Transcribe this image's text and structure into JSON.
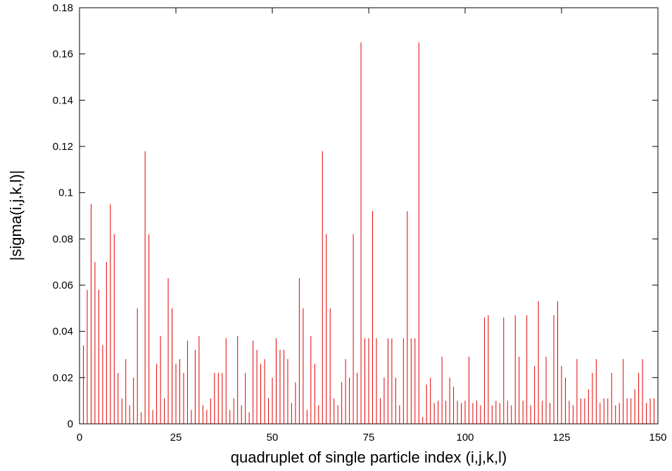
{
  "chart_data": {
    "type": "impulse",
    "xlabel": "quadruplet of single particle index (i,j,k,l)",
    "ylabel": "|sigma(i,j,k,l)|",
    "color": "#e00000",
    "xlim": [
      0,
      150
    ],
    "xticks": [
      0,
      25,
      50,
      75,
      100,
      125,
      150
    ],
    "ylim": [
      0,
      0.18
    ],
    "yticks": [
      0,
      0.02,
      0.04,
      0.06,
      0.08,
      0.1,
      0.12,
      0.14,
      0.16,
      0.18
    ],
    "x": [
      1,
      2,
      3,
      4,
      5,
      6,
      7,
      8,
      9,
      10,
      11,
      12,
      13,
      14,
      15,
      16,
      17,
      18,
      19,
      20,
      21,
      22,
      23,
      24,
      25,
      26,
      27,
      28,
      29,
      30,
      31,
      32,
      33,
      34,
      35,
      36,
      37,
      38,
      39,
      40,
      41,
      42,
      43,
      44,
      45,
      46,
      47,
      48,
      49,
      50,
      51,
      52,
      53,
      54,
      55,
      56,
      57,
      58,
      59,
      60,
      61,
      62,
      63,
      64,
      65,
      66,
      67,
      68,
      69,
      70,
      71,
      72,
      73,
      74,
      75,
      76,
      77,
      78,
      79,
      80,
      81,
      82,
      83,
      84,
      85,
      86,
      87,
      88,
      89,
      90,
      91,
      92,
      93,
      94,
      95,
      96,
      97,
      98,
      99,
      100,
      101,
      102,
      103,
      104,
      105,
      106,
      107,
      108,
      109,
      110,
      111,
      112,
      113,
      114,
      115,
      116,
      117,
      118,
      119,
      120,
      121,
      122,
      123,
      124,
      125,
      126,
      127,
      128,
      129,
      130,
      131,
      132,
      133,
      134,
      135,
      136,
      137,
      138,
      139,
      140,
      141,
      142,
      143,
      144,
      145,
      146,
      147,
      148,
      149
    ],
    "values": [
      0.034,
      0.058,
      0.095,
      0.07,
      0.058,
      0.034,
      0.07,
      0.095,
      0.082,
      0.022,
      0.011,
      0.028,
      0.008,
      0.02,
      0.05,
      0.005,
      0.118,
      0.082,
      0.006,
      0.026,
      0.038,
      0.011,
      0.063,
      0.05,
      0.026,
      0.028,
      0.022,
      0.036,
      0.006,
      0.032,
      0.038,
      0.008,
      0.006,
      0.011,
      0.022,
      0.022,
      0.022,
      0.037,
      0.006,
      0.011,
      0.038,
      0.008,
      0.022,
      0.005,
      0.036,
      0.032,
      0.026,
      0.028,
      0.011,
      0.02,
      0.037,
      0.032,
      0.032,
      0.028,
      0.009,
      0.018,
      0.063,
      0.05,
      0.006,
      0.038,
      0.026,
      0.008,
      0.118,
      0.082,
      0.05,
      0.011,
      0.008,
      0.018,
      0.028,
      0.02,
      0.082,
      0.022,
      0.165,
      0.037,
      0.037,
      0.092,
      0.037,
      0.011,
      0.02,
      0.037,
      0.037,
      0.02,
      0.008,
      0.037,
      0.092,
      0.037,
      0.037,
      0.165,
      0.003,
      0.017,
      0.02,
      0.009,
      0.01,
      0.029,
      0.01,
      0.02,
      0.016,
      0.01,
      0.009,
      0.01,
      0.029,
      0.009,
      0.01,
      0.008,
      0.046,
      0.047,
      0.008,
      0.01,
      0.009,
      0.046,
      0.01,
      0.008,
      0.047,
      0.029,
      0.01,
      0.047,
      0.008,
      0.025,
      0.053,
      0.01,
      0.029,
      0.009,
      0.047,
      0.053,
      0.025,
      0.02,
      0.01,
      0.008,
      0.028,
      0.011,
      0.011,
      0.015,
      0.022,
      0.028,
      0.009,
      0.011,
      0.011,
      0.022,
      0.008,
      0.009,
      0.028,
      0.011,
      0.011,
      0.015,
      0.022,
      0.028,
      0.009,
      0.011,
      0.011
    ]
  }
}
